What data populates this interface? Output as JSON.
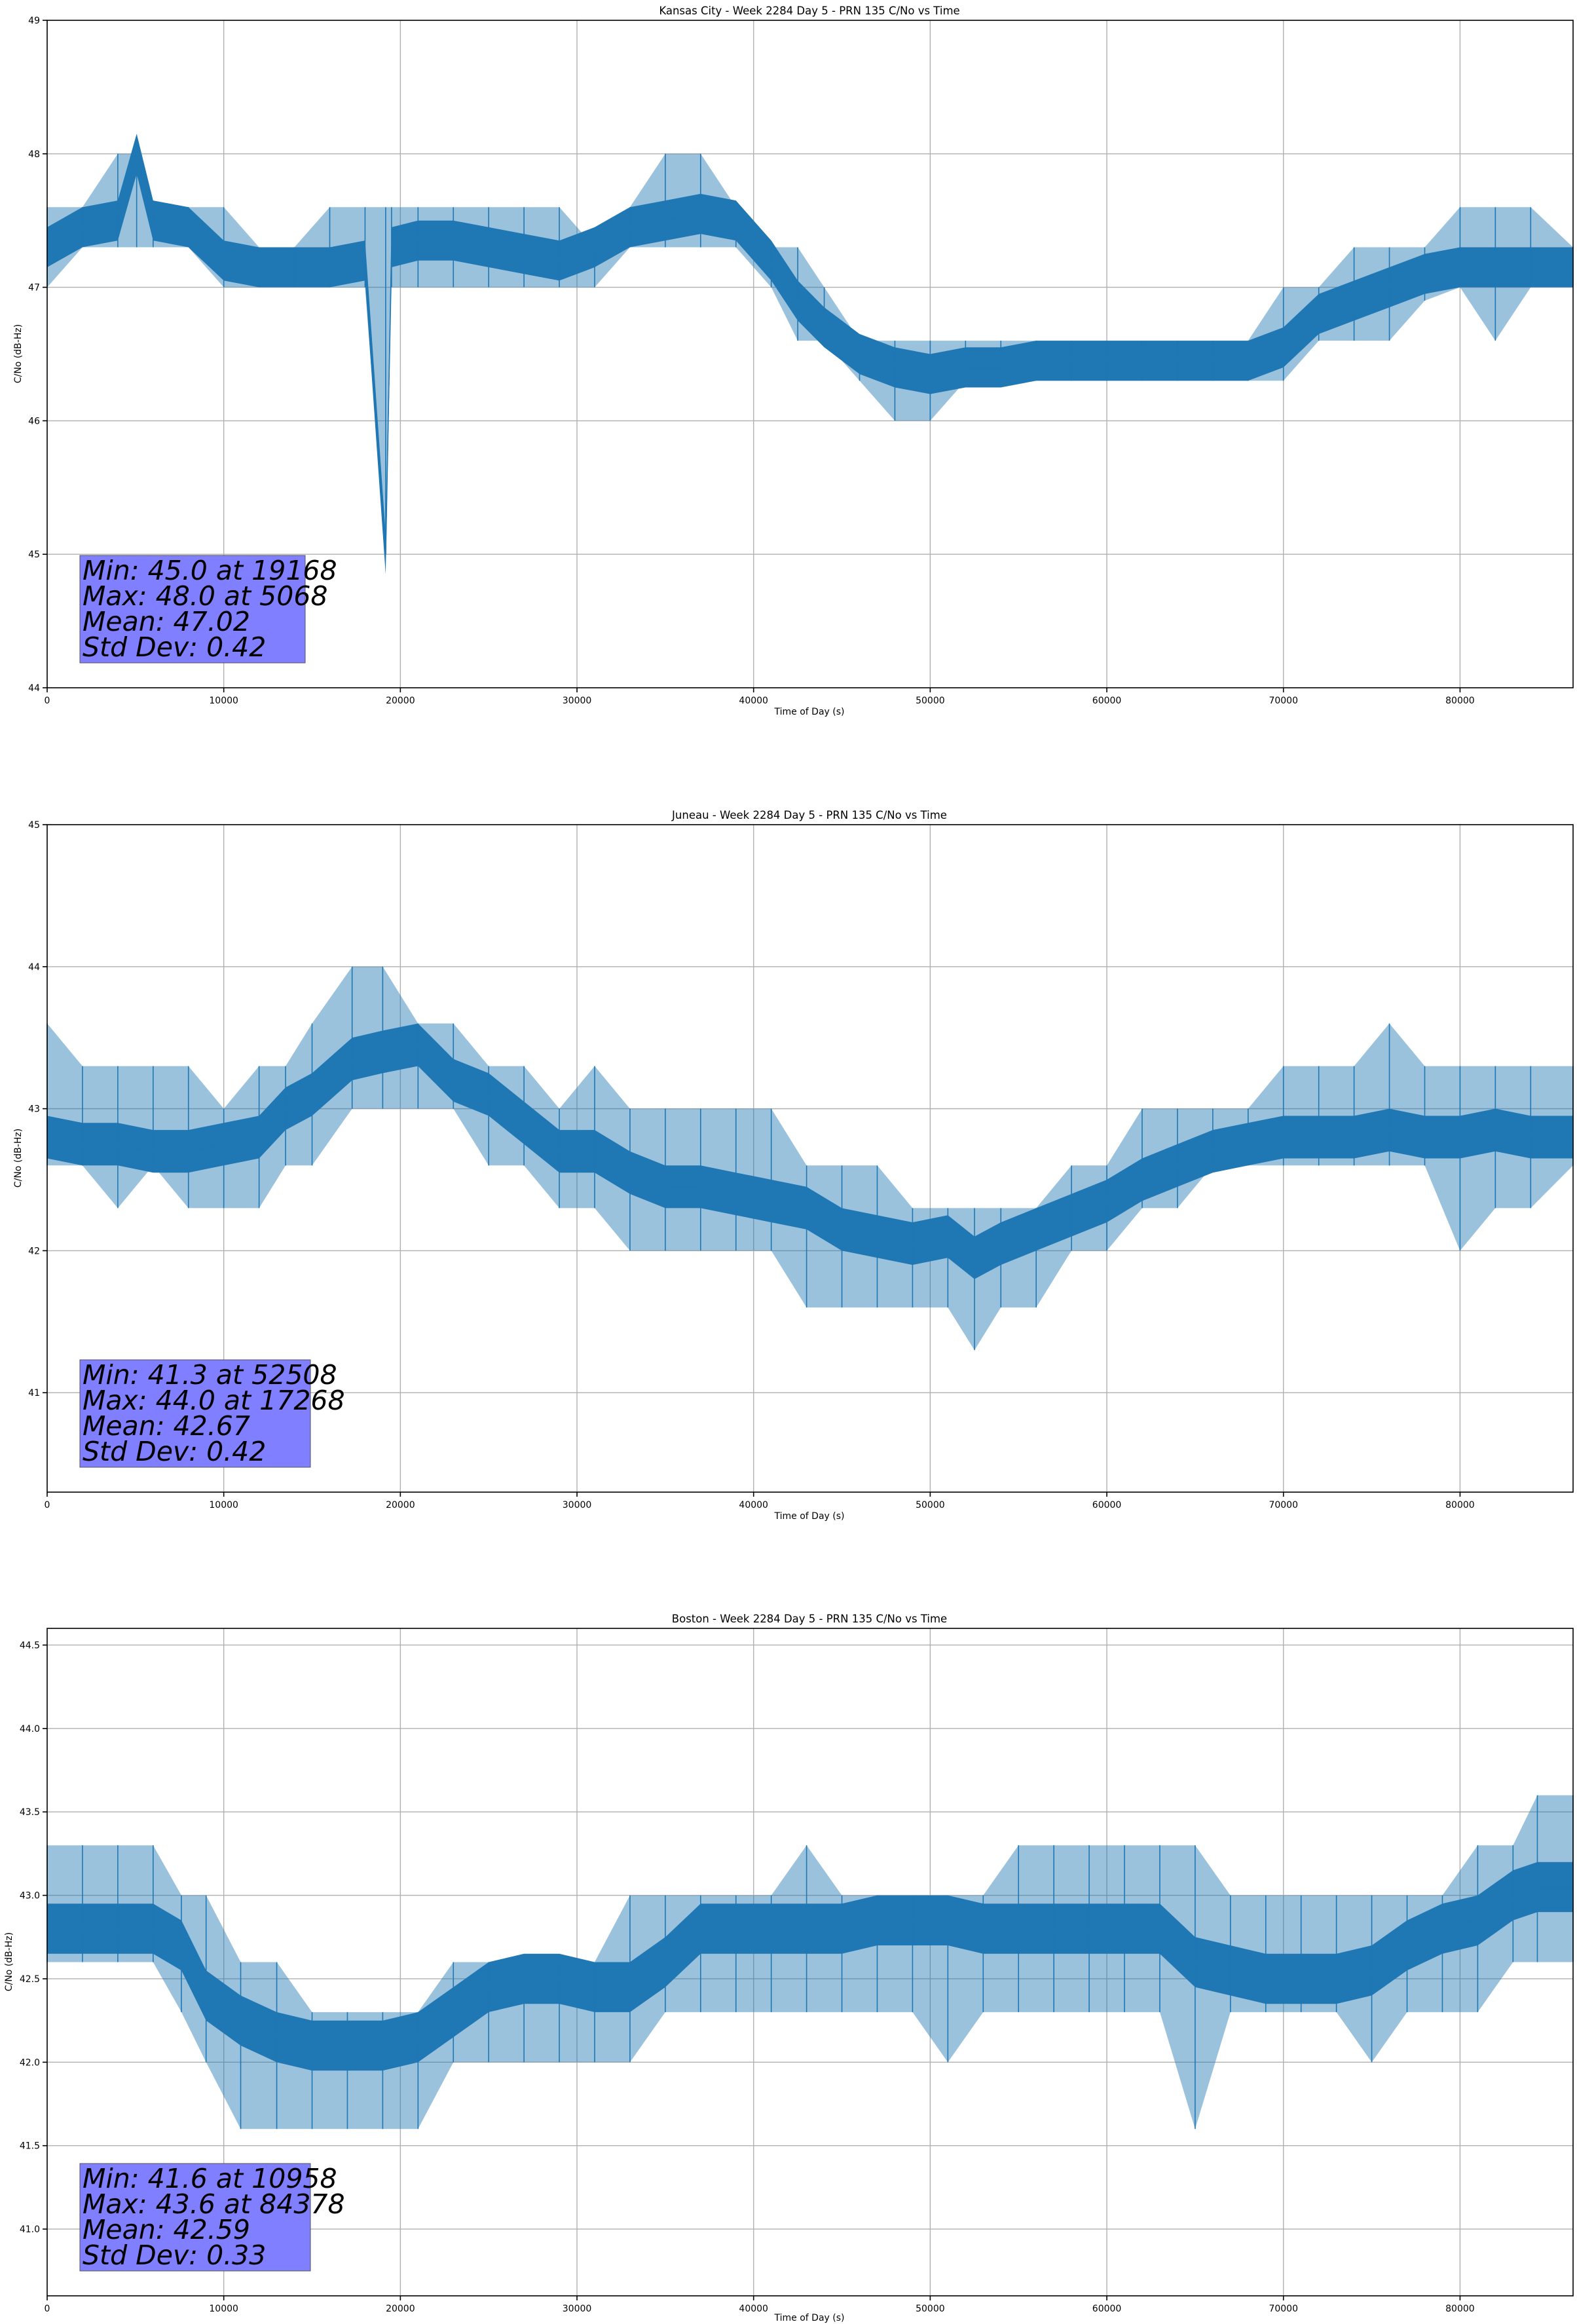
{
  "chart_data": [
    {
      "type": "line",
      "title": "Kansas City - Week 2284 Day 5 - PRN 135 C/No vs Time",
      "xlabel": "Time of Day (s)",
      "ylabel": "C/No (dB-Hz)",
      "xlim": [
        0,
        86400
      ],
      "ylim": [
        44,
        49
      ],
      "xticks": [
        0,
        10000,
        20000,
        30000,
        40000,
        50000,
        60000,
        70000,
        80000
      ],
      "yticks": [
        44,
        45,
        46,
        47,
        48,
        49
      ],
      "ytick_labels": [
        "44",
        "45",
        "46",
        "47",
        "48",
        "49"
      ],
      "grid": true,
      "color": "#1f77b4",
      "series": [
        {
          "x": [
            0,
            2000,
            4000,
            5068,
            6000,
            8000,
            10000,
            12000,
            14000,
            16000,
            18000,
            19168,
            19500,
            21000,
            23000,
            25000,
            27000,
            29000,
            31000,
            33000,
            35000,
            37000,
            39000,
            41000,
            42500,
            44000,
            46000,
            48000,
            50000,
            52000,
            54000,
            56000,
            58000,
            60000,
            62000,
            64000,
            66000,
            68000,
            70000,
            72000,
            74000,
            76000,
            78000,
            80000,
            82000,
            84000,
            86400
          ],
          "y": [
            47.3,
            47.45,
            47.5,
            48.0,
            47.5,
            47.45,
            47.2,
            47.15,
            47.15,
            47.15,
            47.2,
            45.0,
            47.3,
            47.35,
            47.35,
            47.3,
            47.25,
            47.2,
            47.3,
            47.45,
            47.5,
            47.55,
            47.5,
            47.2,
            46.9,
            46.7,
            46.5,
            46.4,
            46.35,
            46.4,
            46.4,
            46.45,
            46.45,
            46.45,
            46.45,
            46.45,
            46.45,
            46.45,
            46.55,
            46.8,
            46.9,
            47.0,
            47.1,
            47.15,
            47.15,
            47.15,
            47.15
          ],
          "band_low": [
            47.0,
            47.3,
            47.3,
            47.3,
            47.3,
            47.3,
            47.0,
            47.0,
            47.0,
            47.0,
            47.0,
            45.0,
            47.0,
            47.0,
            47.0,
            47.0,
            47.0,
            47.0,
            47.0,
            47.3,
            47.3,
            47.3,
            47.3,
            47.0,
            46.6,
            46.6,
            46.3,
            46.0,
            46.0,
            46.3,
            46.3,
            46.3,
            46.3,
            46.3,
            46.3,
            46.3,
            46.3,
            46.3,
            46.3,
            46.6,
            46.6,
            46.6,
            46.9,
            47.0,
            46.6,
            47.0,
            47.0
          ],
          "band_high": [
            47.6,
            47.6,
            48.0,
            48.0,
            47.6,
            47.6,
            47.6,
            47.3,
            47.3,
            47.6,
            47.6,
            47.6,
            47.6,
            47.6,
            47.6,
            47.6,
            47.6,
            47.6,
            47.3,
            47.6,
            48.0,
            48.0,
            47.6,
            47.3,
            47.3,
            47.0,
            46.6,
            46.6,
            46.6,
            46.6,
            46.6,
            46.6,
            46.6,
            46.6,
            46.6,
            46.6,
            46.6,
            46.6,
            47.0,
            47.0,
            47.3,
            47.3,
            47.3,
            47.6,
            47.6,
            47.6,
            47.3
          ]
        }
      ],
      "stats": [
        "Min: 45.0 at 19168",
        "Max: 48.0 at 5068",
        "Mean: 47.02",
        "Std Dev: 0.42"
      ]
    },
    {
      "type": "line",
      "title": "Juneau - Week 2284 Day 5 - PRN 135 C/No vs Time",
      "xlabel": "Time of Day (s)",
      "ylabel": "C/No (dB-Hz)",
      "xlim": [
        0,
        86400
      ],
      "ylim": [
        40.3,
        45
      ],
      "xticks": [
        0,
        10000,
        20000,
        30000,
        40000,
        50000,
        60000,
        70000,
        80000
      ],
      "yticks": [
        41,
        42,
        43,
        44,
        45
      ],
      "ytick_labels": [
        "41",
        "42",
        "43",
        "44",
        "45"
      ],
      "grid": true,
      "color": "#1f77b4",
      "series": [
        {
          "x": [
            0,
            2000,
            4000,
            6000,
            8000,
            10000,
            12000,
            13500,
            15000,
            17268,
            19000,
            21000,
            23000,
            25000,
            27000,
            29000,
            31000,
            33000,
            35000,
            37000,
            39000,
            41000,
            43000,
            45000,
            47000,
            49000,
            51000,
            52508,
            54000,
            56000,
            58000,
            60000,
            62000,
            64000,
            66000,
            68000,
            70000,
            72000,
            74000,
            76000,
            78000,
            80000,
            82000,
            84000,
            86400
          ],
          "y": [
            42.8,
            42.75,
            42.75,
            42.7,
            42.7,
            42.75,
            42.8,
            43.0,
            43.1,
            43.35,
            43.4,
            43.45,
            43.2,
            43.1,
            42.9,
            42.7,
            42.7,
            42.55,
            42.45,
            42.45,
            42.4,
            42.35,
            42.3,
            42.15,
            42.1,
            42.05,
            42.1,
            41.95,
            42.05,
            42.15,
            42.25,
            42.35,
            42.5,
            42.6,
            42.7,
            42.75,
            42.8,
            42.8,
            42.8,
            42.85,
            42.8,
            42.8,
            42.85,
            42.8,
            42.8
          ],
          "band_low": [
            42.6,
            42.6,
            42.3,
            42.6,
            42.3,
            42.3,
            42.3,
            42.6,
            42.6,
            43.0,
            43.0,
            43.0,
            43.0,
            42.6,
            42.6,
            42.3,
            42.3,
            42.0,
            42.0,
            42.0,
            42.0,
            42.0,
            41.6,
            41.6,
            41.6,
            41.6,
            41.6,
            41.3,
            41.6,
            41.6,
            42.0,
            42.0,
            42.3,
            42.3,
            42.6,
            42.6,
            42.6,
            42.6,
            42.6,
            42.6,
            42.6,
            42.0,
            42.3,
            42.3,
            42.6
          ],
          "band_high": [
            43.6,
            43.3,
            43.3,
            43.3,
            43.3,
            43.0,
            43.3,
            43.3,
            43.6,
            44.0,
            44.0,
            43.6,
            43.6,
            43.3,
            43.3,
            43.0,
            43.3,
            43.0,
            43.0,
            43.0,
            43.0,
            43.0,
            42.6,
            42.6,
            42.6,
            42.3,
            42.3,
            42.3,
            42.3,
            42.3,
            42.6,
            42.6,
            43.0,
            43.0,
            43.0,
            43.0,
            43.3,
            43.3,
            43.3,
            43.6,
            43.3,
            43.3,
            43.3,
            43.3,
            43.3
          ]
        }
      ],
      "stats": [
        "Min: 41.3 at 52508",
        "Max: 44.0 at 17268",
        "Mean: 42.67",
        "Std Dev: 0.42"
      ]
    },
    {
      "type": "line",
      "title": "Boston - Week 2284 Day 5 - PRN 135 C/No vs Time",
      "xlabel": "Time of Day (s)",
      "ylabel": "C/No (dB-Hz)",
      "xlim": [
        0,
        86400
      ],
      "ylim": [
        40.6,
        44.6
      ],
      "xticks": [
        0,
        10000,
        20000,
        30000,
        40000,
        50000,
        60000,
        70000,
        80000
      ],
      "yticks": [
        41.0,
        41.5,
        42.0,
        42.5,
        43.0,
        43.5,
        44.0,
        44.5
      ],
      "ytick_labels": [
        "41.0",
        "41.5",
        "42.0",
        "42.5",
        "43.0",
        "43.5",
        "44.0",
        "44.5"
      ],
      "grid": true,
      "color": "#1f77b4",
      "series": [
        {
          "x": [
            0,
            2000,
            4000,
            6000,
            7600,
            9000,
            10958,
            13000,
            15000,
            17000,
            19000,
            21000,
            23000,
            25000,
            27000,
            29000,
            31000,
            33000,
            35000,
            37000,
            39000,
            41000,
            43000,
            45000,
            47000,
            49000,
            51000,
            53000,
            55000,
            57000,
            59000,
            61000,
            63000,
            65000,
            67000,
            69000,
            71000,
            73000,
            75000,
            77000,
            79000,
            81000,
            83000,
            84378,
            86400
          ],
          "y": [
            42.8,
            42.8,
            42.8,
            42.8,
            42.7,
            42.4,
            42.25,
            42.15,
            42.1,
            42.1,
            42.1,
            42.15,
            42.3,
            42.45,
            42.5,
            42.5,
            42.45,
            42.45,
            42.6,
            42.8,
            42.8,
            42.8,
            42.8,
            42.8,
            42.85,
            42.85,
            42.85,
            42.8,
            42.8,
            42.8,
            42.8,
            42.8,
            42.8,
            42.6,
            42.55,
            42.5,
            42.5,
            42.5,
            42.55,
            42.7,
            42.8,
            42.85,
            43.0,
            43.05,
            43.05
          ],
          "band_low": [
            42.6,
            42.6,
            42.6,
            42.6,
            42.3,
            42.0,
            41.6,
            41.6,
            41.6,
            41.6,
            41.6,
            41.6,
            42.0,
            42.0,
            42.0,
            42.0,
            42.0,
            42.0,
            42.3,
            42.3,
            42.3,
            42.3,
            42.3,
            42.3,
            42.3,
            42.3,
            42.0,
            42.3,
            42.3,
            42.3,
            42.3,
            42.3,
            42.3,
            41.6,
            42.3,
            42.3,
            42.3,
            42.3,
            42.0,
            42.3,
            42.3,
            42.3,
            42.6,
            42.6,
            42.6
          ],
          "band_high": [
            43.3,
            43.3,
            43.3,
            43.3,
            43.0,
            43.0,
            42.6,
            42.6,
            42.3,
            42.3,
            42.3,
            42.3,
            42.6,
            42.6,
            42.6,
            42.6,
            42.6,
            43.0,
            43.0,
            43.0,
            43.0,
            43.0,
            43.3,
            43.0,
            43.0,
            43.0,
            43.0,
            43.0,
            43.3,
            43.3,
            43.3,
            43.3,
            43.3,
            43.3,
            43.0,
            43.0,
            43.0,
            43.0,
            43.0,
            43.0,
            43.0,
            43.3,
            43.3,
            43.6,
            43.6
          ]
        }
      ],
      "stats": [
        "Min: 41.6 at 10958",
        "Max: 43.6 at 84378",
        "Mean: 42.59",
        "Std Dev: 0.33"
      ]
    }
  ]
}
